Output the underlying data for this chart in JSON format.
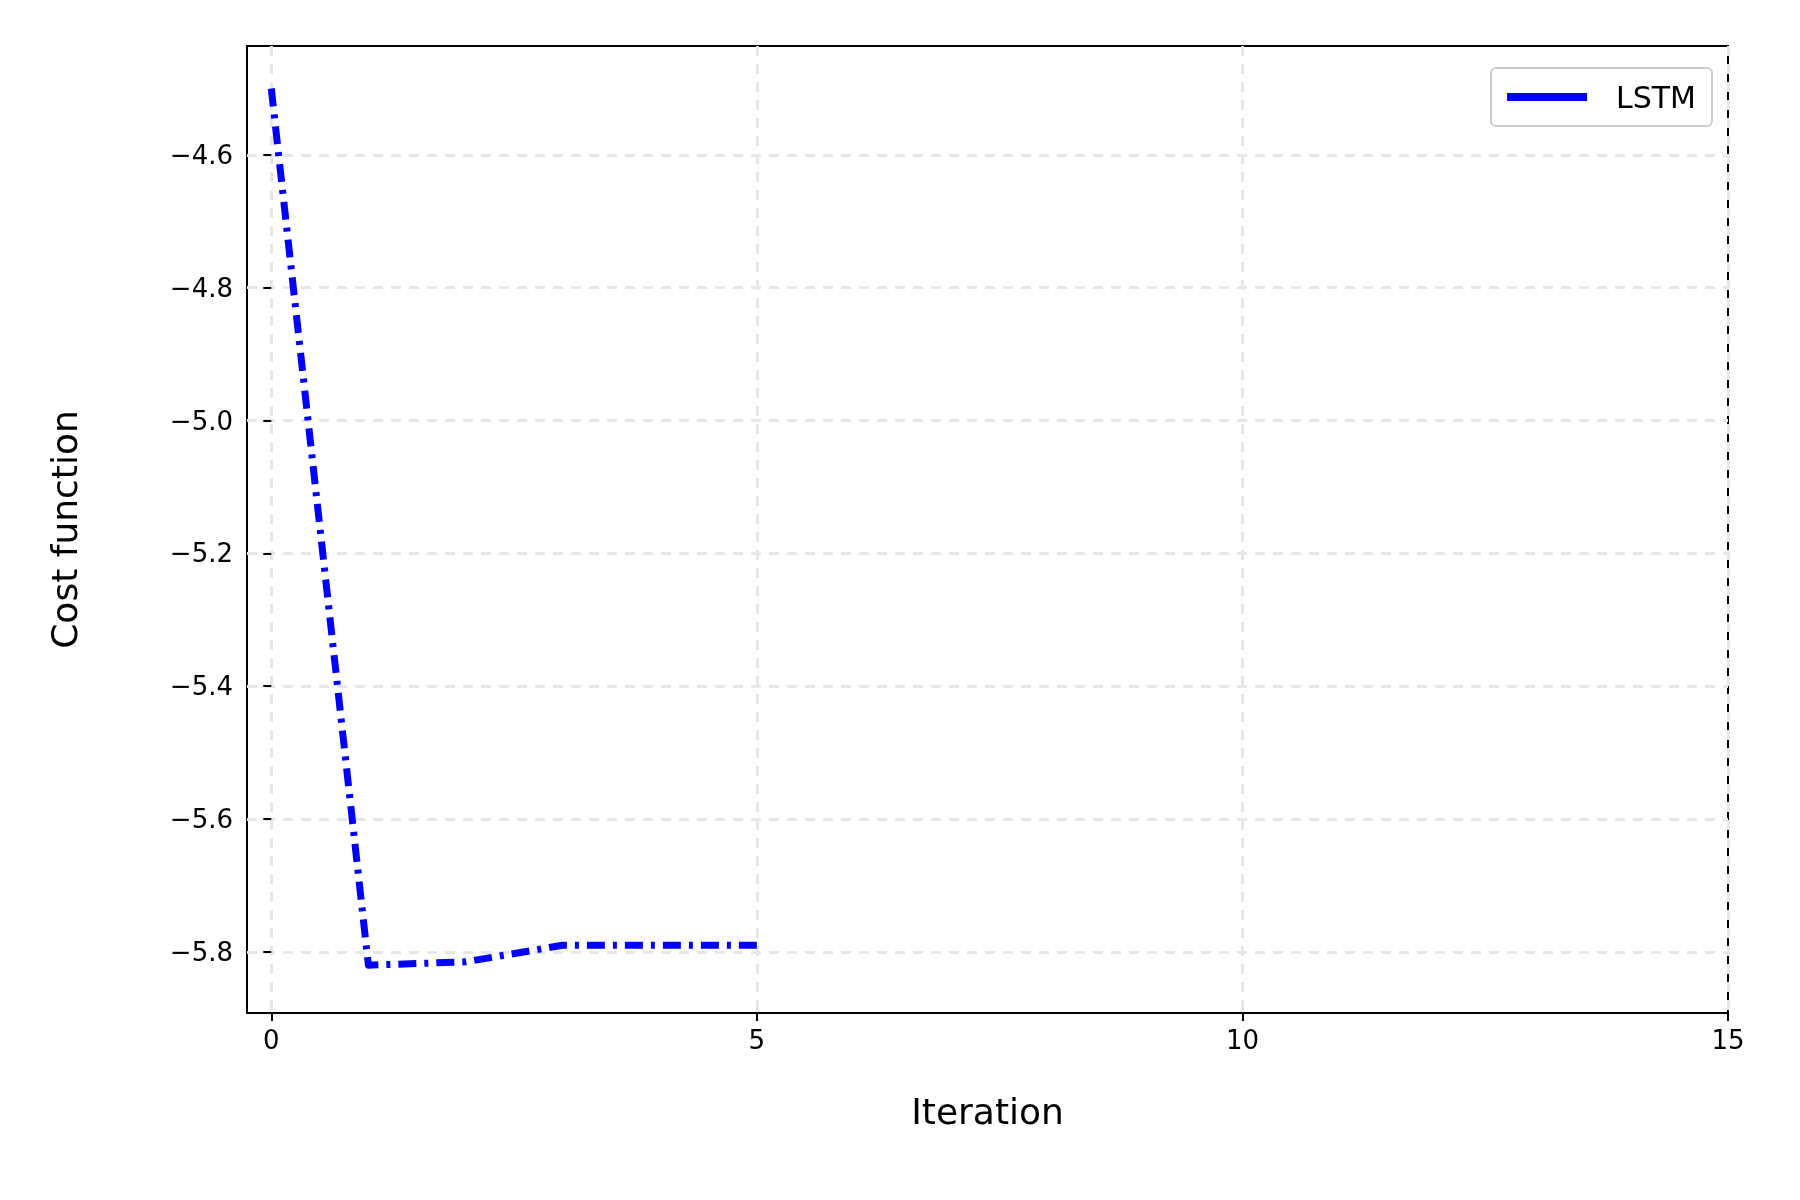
{
  "chart_data": {
    "type": "line",
    "xlabel": "Iteration",
    "ylabel": "Cost function",
    "x": [
      0,
      1,
      2,
      3,
      4,
      5
    ],
    "series": [
      {
        "name": "LSTM",
        "color": "#0000ff",
        "values": [
          -4.5,
          -5.82,
          -5.815,
          -5.79,
          -5.79,
          -5.79
        ]
      }
    ],
    "xlim": [
      -0.25,
      15
    ],
    "xticks": [
      0,
      5,
      10,
      15
    ],
    "ylim": [
      -5.892,
      -4.436
    ],
    "yticks": [
      {
        "value": -5.8,
        "label": "−5.8"
      },
      {
        "value": -5.6,
        "label": "−5.6"
      },
      {
        "value": -5.4,
        "label": "−5.4"
      },
      {
        "value": -5.2,
        "label": "−5.2"
      },
      {
        "value": -5,
        "label": "−5.0"
      },
      {
        "value": -4.8,
        "label": "−4.8"
      },
      {
        "value": -4.6,
        "label": "−4.6"
      }
    ],
    "grid": true,
    "legend": "top right",
    "line_style": "dashed",
    "marker": "none"
  }
}
